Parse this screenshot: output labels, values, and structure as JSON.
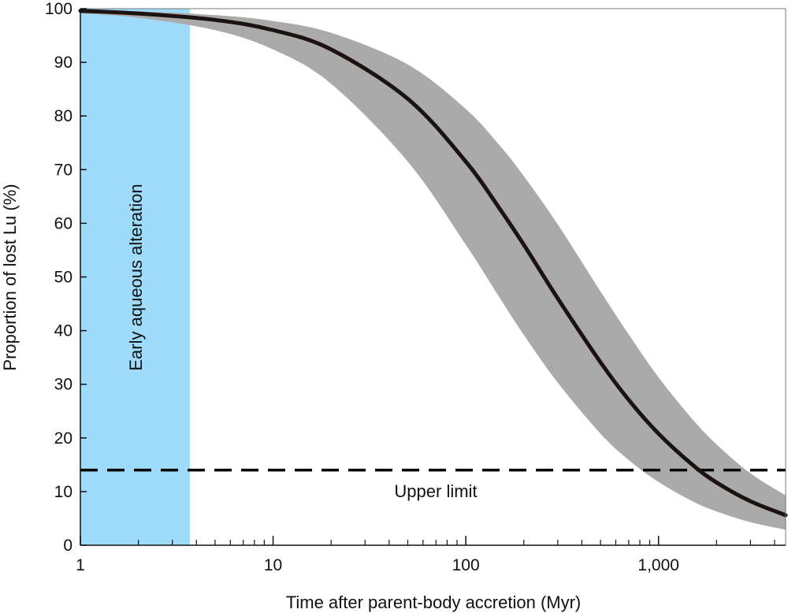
{
  "chart_data": {
    "type": "line",
    "title": "",
    "xlabel": "Time after parent-body accretion (Myr)",
    "ylabel": "Proportion of lost Lu (%)",
    "xscale": "log",
    "xlim": [
      1,
      4567
    ],
    "ylim": [
      0,
      100
    ],
    "grid": false,
    "x_ticks": [
      1,
      10,
      100,
      1000
    ],
    "x_tick_labels": [
      "1",
      "10",
      "100",
      "1,000"
    ],
    "y_ticks": [
      0,
      10,
      20,
      30,
      40,
      50,
      60,
      70,
      80,
      90,
      100
    ],
    "y_tick_labels": [
      "0",
      "10",
      "20",
      "30",
      "40",
      "50",
      "60",
      "70",
      "80",
      "90",
      "100"
    ],
    "x": [
      1,
      2,
      5,
      10,
      20,
      50,
      100,
      150,
      200,
      300,
      500,
      700,
      1000,
      1500,
      2000,
      3000,
      4567
    ],
    "series": [
      {
        "role": "median",
        "color": "#1c1212",
        "values": [
          99.6,
          99.1,
          97.9,
          96.0,
          92.4,
          83.2,
          71.5,
          62.7,
          56.0,
          46.0,
          34.1,
          27.1,
          20.8,
          15.0,
          11.7,
          8.2,
          5.6
        ]
      },
      {
        "role": "band-lower",
        "color": "#aaaaaa",
        "values": [
          99.1,
          98.3,
          96.0,
          92.4,
          86.0,
          71.5,
          56.0,
          46.1,
          39.2,
          30.3,
          20.8,
          15.9,
          11.8,
          8.2,
          6.3,
          4.3,
          2.9
        ]
      },
      {
        "role": "band-upper",
        "color": "#aaaaaa",
        "values": [
          99.7,
          99.5,
          98.8,
          97.7,
          95.5,
          89.6,
          81.3,
          74.5,
          68.8,
          59.8,
          47.3,
          39.3,
          31.3,
          23.5,
          18.8,
          13.4,
          9.3
        ]
      }
    ],
    "shaded_region": {
      "x_range": [
        1,
        3.7
      ],
      "color": "#9fdcfb",
      "label": "Early aqueous alteration"
    },
    "reference_line": {
      "y": 14,
      "style": "dashed",
      "color": "#000000",
      "label": "Upper limit"
    }
  }
}
